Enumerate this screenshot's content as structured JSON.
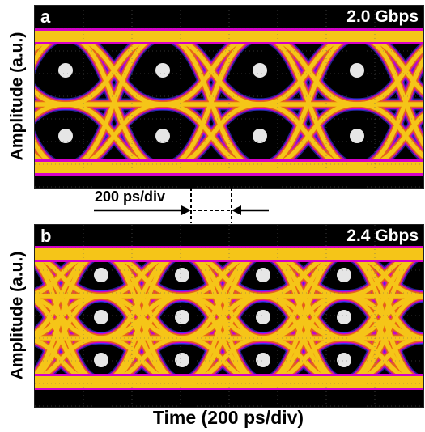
{
  "panels": [
    {
      "label": "a",
      "rate": "2.0 Gbps",
      "ylabel": "Amplitude (a.u.)"
    },
    {
      "label": "b",
      "rate": "2.4 Gbps",
      "ylabel": "Amplitude (a.u.)"
    }
  ],
  "scale_annotation": "200 ps/div",
  "xlabel": "Time (200 ps/div)",
  "colors": {
    "background": "#000000",
    "trace_core": "#f5c518",
    "trace_mid": "#e86a10",
    "edge_magenta": "#d400c8",
    "edge_blue": "#3a3aff",
    "crossing": "#ffffff"
  }
}
